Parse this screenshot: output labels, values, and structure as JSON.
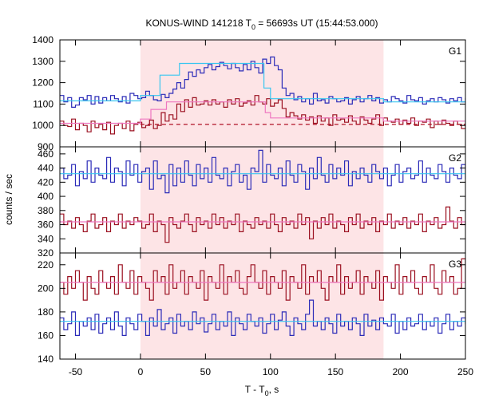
{
  "chart_data": {
    "type": "line",
    "title": {
      "prefix": "KONUS-WIND 141218 T",
      "sub": "0",
      "suffix": " = 56693s UT (15:44:53.000)"
    },
    "xlabel": {
      "prefix": "T - T",
      "sub": "0",
      "suffix": ", s"
    },
    "ylabel": "counts / sec",
    "xlim": [
      -62,
      250
    ],
    "xticks": [
      -50,
      0,
      50,
      100,
      150,
      200,
      250
    ],
    "shaded_interval": [
      0,
      187
    ],
    "grid": false,
    "colors": {
      "blue": "#2b2bb8",
      "red": "#9b1020",
      "cyan": "#39c6f0",
      "pink": "#ee77c0",
      "red_dash": "#b01025",
      "shade": "#fde4e6"
    },
    "panels": [
      {
        "label": "G1",
        "ylim": [
          900,
          1400
        ],
        "yticks": [
          900,
          1000,
          1100,
          1200,
          1300,
          1400
        ],
        "series": [
          {
            "color": "blue",
            "style": "step",
            "x_start": -62,
            "step": 3,
            "values": [
              1140,
              1110,
              1130,
              1085,
              1095,
              1130,
              1120,
              1140,
              1100,
              1135,
              1105,
              1130,
              1115,
              1140,
              1125,
              1110,
              1135,
              1105,
              1150,
              1140,
              1125,
              1130,
              1160,
              1140,
              1120,
              1115,
              1145,
              1130,
              1150,
              1170,
              1200,
              1175,
              1215,
              1250,
              1230,
              1260,
              1245,
              1270,
              1285,
              1260,
              1275,
              1295,
              1280,
              1265,
              1290,
              1270,
              1255,
              1285,
              1260,
              1300,
              1270,
              1245,
              1310,
              1290,
              1320,
              1280,
              1260,
              1175,
              1140,
              1150,
              1120,
              1135,
              1110,
              1125,
              1100,
              1150,
              1115,
              1120,
              1105,
              1135,
              1125,
              1110,
              1115,
              1130,
              1100,
              1120,
              1135,
              1110,
              1125,
              1140,
              1115,
              1130,
              1105,
              1120,
              1110,
              1135,
              1125,
              1115,
              1105,
              1140,
              1120,
              1115,
              1130,
              1100,
              1115,
              1125,
              1110,
              1130,
              1120,
              1105,
              1125,
              1115,
              1130,
              1110,
              1125
            ]
          },
          {
            "color": "red",
            "style": "step",
            "x_start": -62,
            "step": 3,
            "values": [
              1020,
              1000,
              995,
              1030,
              980,
              1010,
              1000,
              970,
              1020,
              990,
              1005,
              980,
              1015,
              960,
              1000,
              1010,
              985,
              1020,
              975,
              1005,
              1015,
              990,
              1000,
              1025,
              985,
              1000,
              1060,
              1020,
              1050,
              1030,
              1100,
              1065,
              1120,
              1085,
              1130,
              1095,
              1100,
              1115,
              1095,
              1120,
              1100,
              1110,
              1085,
              1120,
              1100,
              1125,
              1090,
              1105,
              1115,
              1095,
              1140,
              1110,
              1100,
              1125,
              1090,
              1105,
              1120,
              1080,
              1040,
              1060,
              1045,
              1030,
              1050,
              1025,
              1040,
              1010,
              1045,
              1020,
              1035,
              1000,
              1050,
              1025,
              1030,
              1015,
              1045,
              1020,
              1005,
              1040,
              1025,
              1010,
              1030,
              1050,
              1000,
              1035,
              1020,
              1015,
              1030,
              1005,
              1025,
              1010,
              1035,
              1000,
              1020,
              1015,
              1030,
              990,
              1020,
              1005,
              1025,
              1010,
              1000,
              1020,
              1005,
              985,
              1010
            ]
          },
          {
            "color": "cyan",
            "style": "hline-steps",
            "points": [
              [
                -62,
                1115
              ],
              [
                0,
                1115
              ],
              [
                0,
                1140
              ],
              [
                15,
                1140
              ],
              [
                15,
                1235
              ],
              [
                30,
                1235
              ],
              [
                30,
                1290
              ],
              [
                95,
                1290
              ],
              [
                95,
                1175
              ],
              [
                100,
                1175
              ],
              [
                100,
                1125
              ],
              [
                187,
                1125
              ],
              [
                187,
                1110
              ],
              [
                250,
                1110
              ]
            ]
          },
          {
            "color": "pink",
            "style": "hline-steps",
            "points": [
              [
                -62,
                1010
              ],
              [
                0,
                1010
              ],
              [
                0,
                1030
              ],
              [
                8,
                1030
              ],
              [
                8,
                1075
              ],
              [
                20,
                1075
              ],
              [
                20,
                1110
              ],
              [
                96,
                1110
              ],
              [
                96,
                1060
              ],
              [
                100,
                1060
              ],
              [
                100,
                1035
              ],
              [
                187,
                1035
              ],
              [
                187,
                1020
              ],
              [
                250,
                1020
              ]
            ]
          },
          {
            "color": "red_dash",
            "style": "dashed",
            "points": [
              [
                0,
                1005
              ],
              [
                250,
                1005
              ]
            ]
          }
        ]
      },
      {
        "label": "G2",
        "ylim": [
          320,
          470
        ],
        "yticks": [
          320,
          340,
          360,
          380,
          400,
          420,
          440,
          460
        ],
        "series": [
          {
            "color": "blue",
            "style": "step",
            "x_start": -62,
            "step": 3,
            "values": [
              440,
              425,
              430,
              445,
              415,
              435,
              425,
              450,
              420,
              440,
              430,
              425,
              455,
              420,
              440,
              435,
              415,
              450,
              430,
              445,
              420,
              435,
              440,
              410,
              450,
              425,
              430,
              405,
              445,
              415,
              440,
              420,
              450,
              430,
              415,
              445,
              425,
              440,
              420,
              455,
              430,
              425,
              440,
              415,
              435,
              445,
              420,
              430,
              410,
              440,
              435,
              465,
              420,
              445,
              430,
              425,
              440,
              415,
              450,
              430,
              420,
              445,
              435,
              410,
              440,
              425,
              455,
              430,
              420,
              445,
              425,
              440,
              430,
              450,
              415,
              435,
              425,
              440,
              430,
              420,
              445,
              435,
              425,
              440,
              415,
              430,
              445,
              420,
              435,
              440,
              425,
              430,
              450,
              420,
              440,
              430,
              425,
              445,
              435,
              420,
              440,
              430,
              425,
              445,
              425
            ]
          },
          {
            "color": "red",
            "style": "step",
            "x_start": -62,
            "step": 3,
            "values": [
              375,
              360,
              365,
              355,
              370,
              360,
              350,
              365,
              375,
              355,
              360,
              370,
              350,
              365,
              360,
              375,
              355,
              365,
              360,
              370,
              365,
              355,
              360,
              375,
              350,
              365,
              360,
              335,
              370,
              360,
              355,
              365,
              375,
              360,
              350,
              370,
              360,
              365,
              355,
              375,
              360,
              370,
              355,
              365,
              360,
              375,
              350,
              365,
              360,
              355,
              370,
              360,
              365,
              355,
              375,
              360,
              350,
              370,
              360,
              365,
              355,
              375,
              360,
              370,
              340,
              365,
              355,
              370,
              360,
              375,
              355,
              365,
              360,
              350,
              370,
              360,
              375,
              355,
              365,
              360,
              370,
              350,
              365,
              360,
              375,
              355,
              365,
              360,
              370,
              355,
              365,
              360,
              375,
              350,
              365,
              360,
              370,
              355,
              360,
              385,
              365,
              355,
              370,
              360,
              365
            ]
          },
          {
            "color": "cyan",
            "style": "hline-steps",
            "points": [
              [
                -62,
                432
              ],
              [
                250,
                432
              ]
            ]
          },
          {
            "color": "pink",
            "style": "hline-steps",
            "points": [
              [
                -62,
                364
              ],
              [
                250,
                364
              ]
            ]
          }
        ]
      },
      {
        "label": "G3",
        "ylim": [
          140,
          230
        ],
        "yticks": [
          140,
          160,
          180,
          200,
          220
        ],
        "series": [
          {
            "color": "red",
            "style": "step",
            "x_start": -62,
            "step": 3,
            "values": [
              205,
              195,
              210,
              200,
              215,
              205,
              190,
              210,
              200,
              195,
              215,
              205,
              200,
              210,
              195,
              220,
              205,
              200,
              215,
              195,
              210,
              205,
              200,
              190,
              215,
              205,
              210,
              195,
              220,
              200,
              205,
              215,
              195,
              210,
              205,
              200,
              215,
              190,
              210,
              205,
              200,
              220,
              195,
              210,
              205,
              215,
              200,
              195,
              210,
              220,
              205,
              200,
              215,
              195,
              210,
              205,
              200,
              215,
              190,
              210,
              205,
              200,
              220,
              195,
              210,
              205,
              215,
              200,
              190,
              210,
              205,
              220,
              195,
              210,
              200,
              205,
              215,
              195,
              210,
              205,
              200,
              215,
              190,
              210,
              205,
              200,
              220,
              195,
              210,
              205,
              215,
              200,
              195,
              210,
              205,
              220,
              200,
              195,
              215,
              205,
              210,
              195,
              200,
              225,
              205
            ]
          },
          {
            "color": "blue",
            "style": "step",
            "x_start": -62,
            "step": 3,
            "values": [
              175,
              165,
              170,
              180,
              160,
              172,
              168,
              175,
              165,
              178,
              162,
              170,
              175,
              165,
              180,
              168,
              160,
              175,
              170,
              165,
              178,
              172,
              160,
              175,
              168,
              182,
              165,
              170,
              175,
              162,
              178,
              168,
              172,
              165,
              180,
              170,
              175,
              163,
              170,
              178,
              165,
              172,
              168,
              180,
              160,
              175,
              170,
              165,
              178,
              172,
              168,
              175,
              162,
              170,
              178,
              165,
              173,
              180,
              168,
              160,
              175,
              170,
              165,
              178,
              190,
              168,
              172,
              165,
              175,
              170,
              162,
              178,
              168,
              172,
              165,
              175,
              170,
              160,
              178,
              168,
              173,
              165,
              175,
              170,
              168,
              178,
              162,
              172,
              165,
              175,
              168,
              170,
              178,
              165,
              172,
              168,
              175,
              162,
              170,
              178,
              165,
              172,
              168,
              175,
              170
            ]
          },
          {
            "color": "pink",
            "style": "hline-steps",
            "points": [
              [
                -62,
                205
              ],
              [
                250,
                205
              ]
            ]
          },
          {
            "color": "cyan",
            "style": "hline-steps",
            "points": [
              [
                -62,
                172
              ],
              [
                250,
                172
              ]
            ]
          }
        ]
      }
    ]
  }
}
